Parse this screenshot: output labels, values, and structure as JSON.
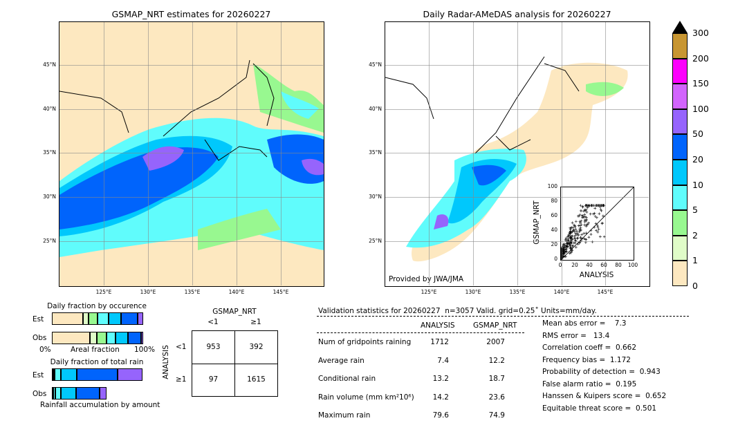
{
  "left_map": {
    "title": "GSMAP_NRT estimates for 20260227"
  },
  "right_map": {
    "title": "Daily Radar-AMeDAS analysis for 20260227",
    "credit": "Provided by JWA/JMA"
  },
  "lat_ticks": [
    "45°N",
    "40°N",
    "35°N",
    "30°N",
    "25°N"
  ],
  "lon_ticks": [
    "125°E",
    "130°E",
    "135°E",
    "140°E",
    "145°E"
  ],
  "colorbar": {
    "levels": [
      "0",
      "1",
      "2",
      "5",
      "10",
      "20",
      "50",
      "100",
      "150",
      "200",
      "300"
    ],
    "colors": [
      "#fde8c0",
      "#e0fcc8",
      "#98f890",
      "#60fcfc",
      "#00c8fc",
      "#0064fc",
      "#9664fc",
      "#d264fc",
      "#fc00fc",
      "#c89632"
    ]
  },
  "scatter": {
    "xlabel": "ANALYSIS",
    "ylabel": "GSMAP_NRT",
    "ticks": [
      "0",
      "20",
      "40",
      "60",
      "80",
      "100"
    ]
  },
  "occurrence": {
    "title": "Daily fraction by occurence",
    "est_label": "Est",
    "obs_label": "Obs",
    "x0": "0%",
    "xlabel": "Areal fraction",
    "x1": "100%",
    "est": [
      34,
      6,
      10,
      12,
      14,
      18,
      6
    ],
    "obs": [
      43,
      8,
      11,
      10,
      14,
      15,
      2
    ]
  },
  "total_rain": {
    "title": "Daily fraction of total rain",
    "est_label": "Est",
    "obs_label": "Obs",
    "xlabel": "Rainfall accumulation by amount",
    "est": [
      1.5,
      1.5,
      7,
      17,
      45,
      27
    ],
    "obs": [
      1.5,
      2,
      6,
      17,
      26,
      7
    ]
  },
  "contingency": {
    "col_title": "GSMAP_NRT",
    "row_title": "ANALYSIS",
    "col_labels": [
      "<1",
      "≥1"
    ],
    "row_labels": [
      "<1",
      "≥1"
    ],
    "cells": [
      [
        "953",
        "392"
      ],
      [
        "97",
        "1615"
      ]
    ]
  },
  "stats": {
    "header": "Validation statistics for 20260227  n=3057 Valid. grid=0.25˚ Units=mm/day.",
    "col1": "ANALYSIS",
    "col2": "GSMAP_NRT",
    "rows": [
      {
        "label": "Num of gridpoints raining",
        "a": "1712",
        "g": "2007"
      },
      {
        "label": "Average rain",
        "a": "7.4",
        "g": "12.2"
      },
      {
        "label": "Conditional rain",
        "a": "13.2",
        "g": "18.7"
      },
      {
        "label": "Rain volume (mm km²10⁶)",
        "a": "14.2",
        "g": "23.6"
      },
      {
        "label": "Maximum rain",
        "a": "79.6",
        "g": "74.9"
      }
    ],
    "scores": [
      "Mean abs error =    7.3",
      "RMS error =   13.4",
      "Correlation coeff =  0.662",
      "Frequency bias =  1.172",
      "Probability of detection =  0.943",
      "False alarm ratio =  0.195",
      "Hanssen & Kuipers score =  0.652",
      "Equitable threat score =  0.501"
    ]
  }
}
